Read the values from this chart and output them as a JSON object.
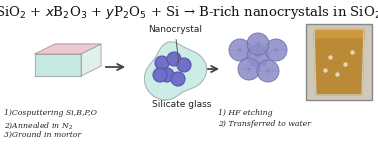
{
  "title": "SiO$_2$ + $x$B$_2$O$_3$ + $y$P$_2$O$_5$ + Si → B-rich nanocrystals in SiO$_2$",
  "bg_color": "#ffffff",
  "title_fontsize": 9.5,
  "arrow_color": "#444444",
  "label1_lines": [
    "1)Cosputtering Si,B,P,O",
    "2)Annealed in N$_2$",
    "3)Ground in mortor"
  ],
  "label2_lines": [
    "1) HF etching",
    "2) Transferred to water"
  ],
  "nanocrystal_label": "Nanocrystal",
  "silicate_label": "Silicate glass",
  "wafer_front": "#c5e8e2",
  "wafer_top": "#f0c8d0",
  "wafer_right": "#e0f0ec",
  "blob_color": "#c8ebe5",
  "blob_edge": "#aaaaaa",
  "nc_fill": "#7070c8",
  "nc_edge": "#5555aa",
  "disp_fill": "#9090cc",
  "disp_edge": "#7070aa",
  "photo_bg": "#c8c8c8",
  "photo_border": "#888888",
  "beaker_amber": "#b88020",
  "beaker_light": "#d4a040",
  "beaker_glass": "#e0d8c0",
  "text_color": "#222222"
}
